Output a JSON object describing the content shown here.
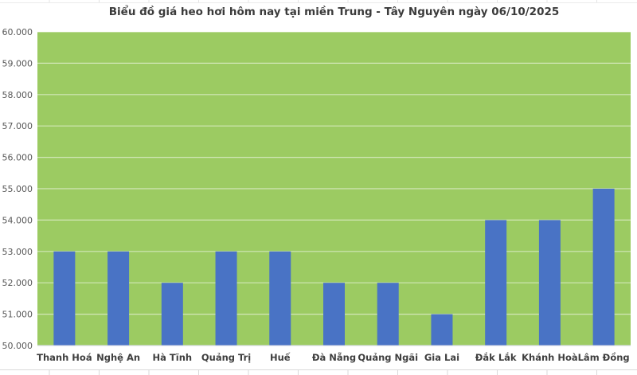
{
  "chart_data": {
    "type": "bar",
    "title": "Biểu đồ giá heo hơi hôm nay tại miền Trung - Tây Nguyên ngày 06/10/2025",
    "categories": [
      "Thanh Hoá",
      "Nghệ An",
      "Hà Tĩnh",
      "Quảng Trị",
      "Huế",
      "Đà Nẵng",
      "Quảng Ngãi",
      "Gia Lai",
      "Đắk Lắk",
      "Khánh Hoà",
      "Lâm Đồng"
    ],
    "values": [
      53000,
      53000,
      52000,
      53000,
      53000,
      52000,
      52000,
      51000,
      54000,
      54000,
      55000
    ],
    "xlabel": "",
    "ylabel": "",
    "ylim": [
      50000,
      60000
    ],
    "ytick_step": 1000,
    "ytick_labels": [
      "50.000",
      "51.000",
      "52.000",
      "53.000",
      "54.000",
      "55.000",
      "56.000",
      "57.000",
      "58.000",
      "59.000",
      "60.000"
    ],
    "grid": true,
    "legend": "none",
    "colors": {
      "bar": "#4973c5",
      "plot_bg": "#9ccb62",
      "gridline": "#ffffff",
      "axis_line": "#d2d5e4",
      "title": "#3b3b3b",
      "ytick": "#595959",
      "xtick": "#3f3f3f",
      "page_bg": "#ffffff",
      "table_line": "#d9d9d9"
    }
  }
}
